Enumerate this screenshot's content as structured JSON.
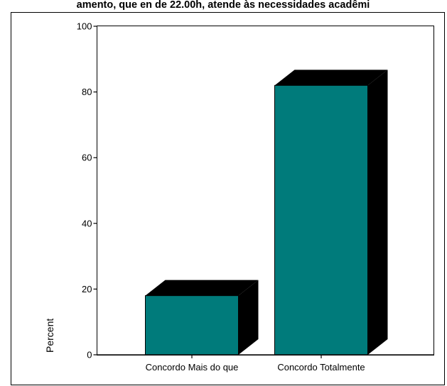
{
  "chart_data": {
    "type": "bar",
    "title": "amento, que en de 22.00h, atende às necessidades acadêmi",
    "xlabel": "",
    "ylabel": "Percent",
    "categories": [
      "Concordo Mais do que",
      "Concordo Totalmente"
    ],
    "values": [
      18,
      82
    ],
    "ylim": [
      0,
      100
    ],
    "yticks": [
      0,
      20,
      40,
      60,
      80,
      100
    ],
    "bar_style": "3d",
    "grid": false,
    "legend": "none",
    "colors": {
      "bar_front": "#007b7b",
      "bar_shadow": "#000000",
      "axis": "#000000"
    }
  }
}
